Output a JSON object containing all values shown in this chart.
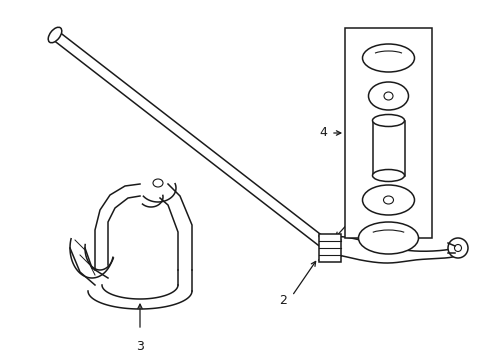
{
  "bg_color": "#ffffff",
  "line_color": "#1a1a1a",
  "line_width": 1.1,
  "label_fontsize": 9,
  "fig_width": 4.89,
  "fig_height": 3.6,
  "dpi": 100
}
